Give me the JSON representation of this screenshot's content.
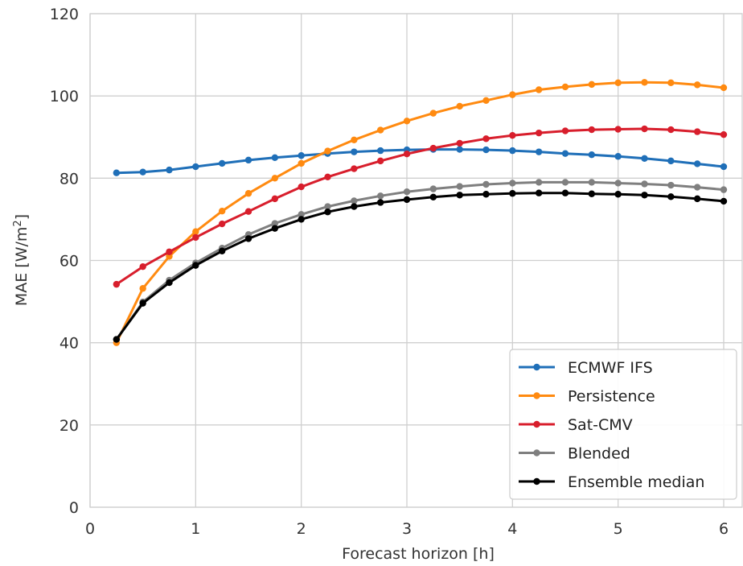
{
  "chart_data": {
    "type": "line",
    "title": "",
    "xlabel": "Forecast horizon [h]",
    "ylabel_prefix": "MAE [W/m",
    "ylabel_sup": "2",
    "ylabel_suffix": "]",
    "xlim": [
      0,
      6
    ],
    "ylim": [
      0,
      120
    ],
    "xticks": [
      0,
      1,
      2,
      3,
      4,
      5,
      6
    ],
    "yticks": [
      0,
      20,
      40,
      60,
      80,
      100,
      120
    ],
    "grid": true,
    "legend_position": "lower-right",
    "x": [
      0.25,
      0.5,
      0.75,
      1.0,
      1.25,
      1.5,
      1.75,
      2.0,
      2.25,
      2.5,
      2.75,
      3.0,
      3.25,
      3.5,
      3.75,
      4.0,
      4.25,
      4.5,
      4.75,
      5.0,
      5.25,
      5.5,
      5.75,
      6.0
    ],
    "series": [
      {
        "name": "ECMWF IFS",
        "color": "#1f6fb8",
        "values": [
          81.3,
          81.5,
          82.0,
          82.8,
          83.6,
          84.4,
          85.0,
          85.5,
          86.0,
          86.4,
          86.7,
          86.9,
          87.0,
          87.0,
          86.9,
          86.7,
          86.4,
          86.0,
          85.7,
          85.3,
          84.8,
          84.2,
          83.5,
          82.8
        ]
      },
      {
        "name": "Persistence",
        "color": "#ff8a10",
        "values": [
          40.0,
          53.2,
          61.0,
          67.0,
          72.0,
          76.3,
          80.0,
          83.6,
          86.6,
          89.3,
          91.7,
          93.9,
          95.8,
          97.5,
          98.9,
          100.3,
          101.5,
          102.2,
          102.8,
          103.2,
          103.3,
          103.2,
          102.7,
          102.0
        ]
      },
      {
        "name": "Sat-CMV",
        "color": "#d81e2c",
        "values": [
          54.2,
          58.5,
          62.1,
          65.6,
          68.9,
          71.9,
          75.0,
          77.9,
          80.3,
          82.3,
          84.2,
          85.9,
          87.3,
          88.5,
          89.6,
          90.4,
          91.0,
          91.5,
          91.8,
          91.9,
          92.0,
          91.8,
          91.3,
          90.6
        ]
      },
      {
        "name": "Blended",
        "color": "#7f7f7f",
        "values": [
          40.8,
          49.9,
          55.2,
          59.4,
          63.0,
          66.3,
          69.0,
          71.2,
          73.1,
          74.5,
          75.7,
          76.7,
          77.4,
          78.0,
          78.5,
          78.8,
          79.0,
          79.0,
          79.0,
          78.8,
          78.6,
          78.3,
          77.8,
          77.2
        ]
      },
      {
        "name": "Ensemble median",
        "color": "#000000",
        "values": [
          40.8,
          49.6,
          54.6,
          58.8,
          62.3,
          65.3,
          67.8,
          70.0,
          71.8,
          73.1,
          74.1,
          74.8,
          75.4,
          75.9,
          76.1,
          76.3,
          76.4,
          76.4,
          76.2,
          76.1,
          75.9,
          75.5,
          75.0,
          74.4
        ]
      }
    ]
  }
}
